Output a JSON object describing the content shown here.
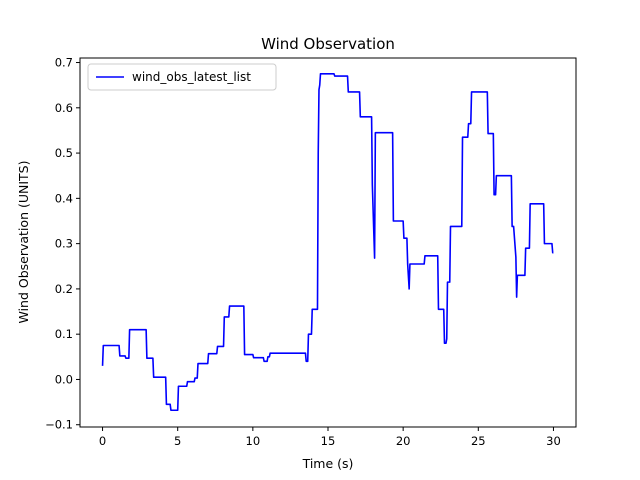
{
  "chart_data": {
    "type": "line",
    "title": "Wind Observation",
    "xlabel": "Time (s)",
    "ylabel": "Wind Observation (UNITS)",
    "xlim": [
      -1.5,
      31.5
    ],
    "ylim": [
      -0.105,
      0.71
    ],
    "xticks": [
      0,
      5,
      10,
      15,
      20,
      25,
      30
    ],
    "yticks": [
      -0.1,
      0.0,
      0.1,
      0.2,
      0.3,
      0.4,
      0.5,
      0.6,
      0.7
    ],
    "xtick_labels": [
      "0",
      "5",
      "10",
      "15",
      "20",
      "25",
      "30"
    ],
    "ytick_labels": [
      "−0.1",
      "0.0",
      "0.1",
      "0.2",
      "0.3",
      "0.4",
      "0.5",
      "0.6",
      "0.7"
    ],
    "grid": false,
    "legend_position": "top-left",
    "series": [
      {
        "name": "wind_obs_latest_list",
        "color": "#0000ff",
        "points": [
          [
            0.0,
            0.03
          ],
          [
            0.05,
            0.075
          ],
          [
            1.1,
            0.075
          ],
          [
            1.15,
            0.052
          ],
          [
            1.5,
            0.052
          ],
          [
            1.55,
            0.047
          ],
          [
            1.75,
            0.047
          ],
          [
            1.8,
            0.11
          ],
          [
            2.9,
            0.11
          ],
          [
            2.95,
            0.047
          ],
          [
            3.35,
            0.047
          ],
          [
            3.4,
            0.005
          ],
          [
            4.2,
            0.005
          ],
          [
            4.25,
            -0.055
          ],
          [
            4.5,
            -0.055
          ],
          [
            4.55,
            -0.068
          ],
          [
            5.0,
            -0.068
          ],
          [
            5.05,
            -0.015
          ],
          [
            5.6,
            -0.015
          ],
          [
            5.65,
            -0.005
          ],
          [
            6.1,
            -0.005
          ],
          [
            6.15,
            0.003
          ],
          [
            6.3,
            0.003
          ],
          [
            6.35,
            0.035
          ],
          [
            7.0,
            0.035
          ],
          [
            7.05,
            0.057
          ],
          [
            7.6,
            0.057
          ],
          [
            7.65,
            0.073
          ],
          [
            8.05,
            0.073
          ],
          [
            8.1,
            0.138
          ],
          [
            8.4,
            0.138
          ],
          [
            8.45,
            0.162
          ],
          [
            9.4,
            0.162
          ],
          [
            9.45,
            0.055
          ],
          [
            10.0,
            0.055
          ],
          [
            10.05,
            0.048
          ],
          [
            10.7,
            0.048
          ],
          [
            10.75,
            0.04
          ],
          [
            10.95,
            0.04
          ],
          [
            11.0,
            0.05
          ],
          [
            11.1,
            0.05
          ],
          [
            11.15,
            0.058
          ],
          [
            13.5,
            0.058
          ],
          [
            13.55,
            0.04
          ],
          [
            13.65,
            0.04
          ],
          [
            13.7,
            0.1
          ],
          [
            13.9,
            0.1
          ],
          [
            13.95,
            0.155
          ],
          [
            14.3,
            0.155
          ],
          [
            14.35,
            0.5
          ],
          [
            14.4,
            0.64
          ],
          [
            14.45,
            0.65
          ],
          [
            14.5,
            0.675
          ],
          [
            15.4,
            0.675
          ],
          [
            15.45,
            0.67
          ],
          [
            16.3,
            0.67
          ],
          [
            16.35,
            0.635
          ],
          [
            17.1,
            0.635
          ],
          [
            17.15,
            0.58
          ],
          [
            17.9,
            0.58
          ],
          [
            17.95,
            0.43
          ],
          [
            18.1,
            0.268
          ],
          [
            18.15,
            0.545
          ],
          [
            19.3,
            0.545
          ],
          [
            19.35,
            0.35
          ],
          [
            20.0,
            0.35
          ],
          [
            20.05,
            0.312
          ],
          [
            20.25,
            0.312
          ],
          [
            20.3,
            0.255
          ],
          [
            20.4,
            0.2
          ],
          [
            20.45,
            0.255
          ],
          [
            21.4,
            0.255
          ],
          [
            21.45,
            0.273
          ],
          [
            22.3,
            0.273
          ],
          [
            22.35,
            0.155
          ],
          [
            22.7,
            0.155
          ],
          [
            22.75,
            0.08
          ],
          [
            22.85,
            0.08
          ],
          [
            22.9,
            0.09
          ],
          [
            22.95,
            0.215
          ],
          [
            23.1,
            0.215
          ],
          [
            23.15,
            0.338
          ],
          [
            23.9,
            0.338
          ],
          [
            23.95,
            0.535
          ],
          [
            24.3,
            0.535
          ],
          [
            24.35,
            0.565
          ],
          [
            24.5,
            0.565
          ],
          [
            24.55,
            0.635
          ],
          [
            25.6,
            0.635
          ],
          [
            25.65,
            0.543
          ],
          [
            26.0,
            0.543
          ],
          [
            26.05,
            0.408
          ],
          [
            26.15,
            0.408
          ],
          [
            26.2,
            0.45
          ],
          [
            27.2,
            0.45
          ],
          [
            27.25,
            0.338
          ],
          [
            27.35,
            0.338
          ],
          [
            27.4,
            0.315
          ],
          [
            27.5,
            0.27
          ],
          [
            27.55,
            0.182
          ],
          [
            27.6,
            0.23
          ],
          [
            28.1,
            0.23
          ],
          [
            28.15,
            0.29
          ],
          [
            28.4,
            0.29
          ],
          [
            28.45,
            0.388
          ],
          [
            29.35,
            0.388
          ],
          [
            29.4,
            0.3
          ],
          [
            29.9,
            0.3
          ],
          [
            29.95,
            0.28
          ],
          [
            30.0,
            0.28
          ]
        ]
      }
    ]
  }
}
